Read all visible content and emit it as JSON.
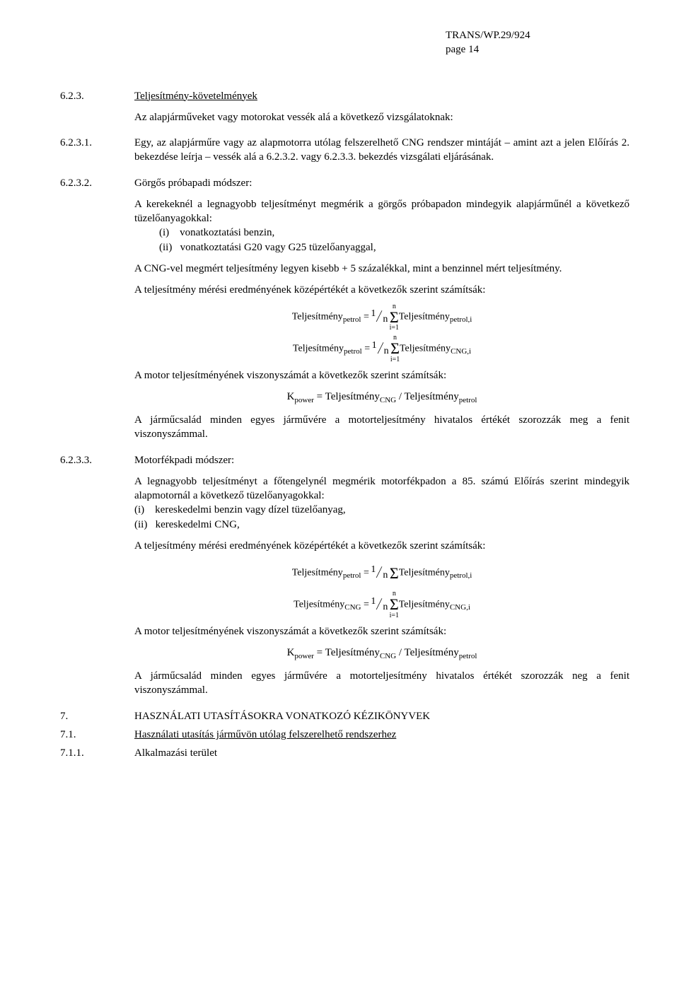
{
  "header": {
    "doc": "TRANS/WP.29/924",
    "page": "page 14"
  },
  "s623": {
    "num": "6.2.3.",
    "title": "Teljesítmény-követelmények",
    "intro": "Az alapjárműveket vagy motorokat vessék alá a következő vizsgálatoknak:"
  },
  "s6231": {
    "num": "6.2.3.1.",
    "text": "Egy, az alapjárműre vagy az alapmotorra utólag felszerelhető CNG rendszer mintáját – amint azt a jelen Előírás 2. bekezdése leírja – vessék alá a 6.2.3.2. vagy 6.2.3.3. bekezdés vizsgálati eljárásának."
  },
  "s6232": {
    "num": "6.2.3.2.",
    "title": "Görgős próbapadi módszer:",
    "p1": "A kerekeknél a legnagyobb teljesítményt megmérik a görgős próbapadon mindegyik alapjárműnél a következő tüzelőanyagokkal:",
    "li1_label": "(i)",
    "li1_text": "vonatkoztatási benzin,",
    "li2_label": "(ii)",
    "li2_text": "vonatkoztatási G20 vagy G25 tüzelőanyaggal,",
    "p2": "A CNG-vel megmért teljesítmény legyen kisebb + 5 százalékkal, mint a benzinnel mért teljesítmény.",
    "p3": "A teljesítmény mérési eredményének középértékét a következők szerint számítsák:",
    "p4": "A motor teljesítményének viszonyszámát a következők szerint számítsák:",
    "kformula_left": "K",
    "kformula_lsub": "power",
    "kformula_mid": " = Teljesítmény",
    "kformula_sub1": "CNG",
    "kformula_div": " / Teljesítmény",
    "kformula_sub2": "petrol",
    "p5": "A járműcsalád minden egyes járművére a motorteljesítmény hivatalos értékét szorozzák meg a fenit viszonyszámmal."
  },
  "s6233": {
    "num": "6.2.3.3.",
    "title": "Motorfékpadi módszer:",
    "p1": "A legnagyobb teljesítményt a főtengelynél megmérik motorfékpadon a 85. számú Előírás szerint mindegyik alapmotornál a következő tüzelőanyagokkal:",
    "li1_label": "(i)",
    "li1_text": "kereskedelmi benzin vagy dízel tüzelőanyag,",
    "li2_label": "(ii)",
    "li2_text": "kereskedelmi CNG,",
    "p3": "A teljesítmény mérési eredményének középértékét a következők szerint számítsák:",
    "p4": "A motor teljesítményének viszonyszámát a következők szerint számítsák:",
    "p5": "A járműcsalád minden egyes járművére a motorteljesítmény hivatalos értékét szorozzák neg a fenit viszonyszámmal."
  },
  "s7": {
    "num": "7.",
    "title": "HASZNÁLATI UTASÍTÁSOKRA VONATKOZÓ KÉZIKÖNYVEK"
  },
  "s71": {
    "num": "7.1.",
    "title": "Használati utasítás járművön utólag felszerelhető rendszerhez"
  },
  "s711": {
    "num": "7.1.1.",
    "title": "Alkalmazási terület"
  },
  "formula_labels": {
    "T": "Teljesítmény",
    "eq": " = ",
    "petrol": "petrol",
    "petroli": "petrol,i",
    "CNG": "CNG",
    "CNGi": "CNG,i",
    "one": "1",
    "n": "n",
    "i1": "i=1"
  }
}
